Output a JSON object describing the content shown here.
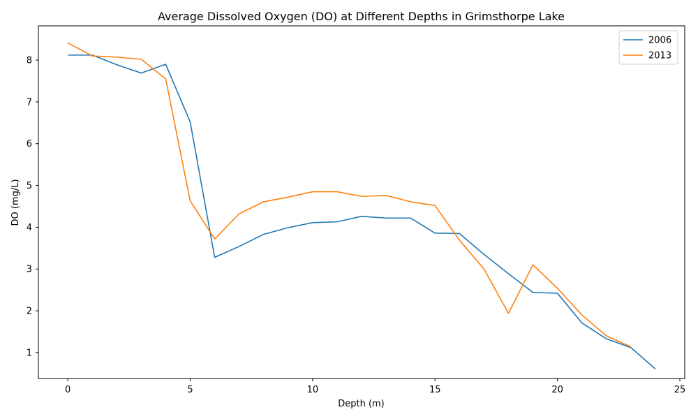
{
  "chart_data": {
    "type": "line",
    "title": "Average Dissolved Oxygen (DO) at Different Depths in Grimsthorpe Lake",
    "xlabel": "Depth (m)",
    "ylabel": "DO (mg/L)",
    "xlim": [
      -1.2,
      25.2
    ],
    "ylim": [
      0.38,
      8.82
    ],
    "xticks": [
      0,
      5,
      10,
      15,
      20,
      25
    ],
    "yticks": [
      1,
      2,
      3,
      4,
      5,
      6,
      7,
      8
    ],
    "grid": false,
    "legend_position": "top-right",
    "series": [
      {
        "name": "2006",
        "color": "#1f77b4",
        "x": [
          0,
          1,
          2,
          3,
          4,
          5,
          6,
          7,
          8,
          9,
          10,
          11,
          12,
          13,
          14,
          15,
          16,
          17,
          18,
          19,
          20,
          21,
          22,
          23,
          24
        ],
        "y": [
          8.12,
          8.12,
          7.89,
          7.69,
          7.9,
          6.52,
          3.28,
          3.54,
          3.83,
          3.99,
          4.11,
          4.13,
          4.26,
          4.22,
          4.22,
          3.86,
          3.85,
          3.35,
          2.89,
          2.44,
          2.42,
          1.71,
          1.33,
          1.12,
          0.61
        ]
      },
      {
        "name": "2013",
        "color": "#ff7f0e",
        "x": [
          0,
          1,
          2,
          3,
          4,
          5,
          6,
          7,
          8,
          9,
          10,
          11,
          12,
          13,
          14,
          15,
          16,
          17,
          18,
          19,
          20,
          21,
          22,
          23
        ],
        "y": [
          8.41,
          8.1,
          8.07,
          8.02,
          7.55,
          4.63,
          3.72,
          4.32,
          4.61,
          4.72,
          4.85,
          4.85,
          4.74,
          4.76,
          4.61,
          4.52,
          3.69,
          3.0,
          1.94,
          3.1,
          2.54,
          1.9,
          1.4,
          1.14
        ]
      }
    ]
  }
}
